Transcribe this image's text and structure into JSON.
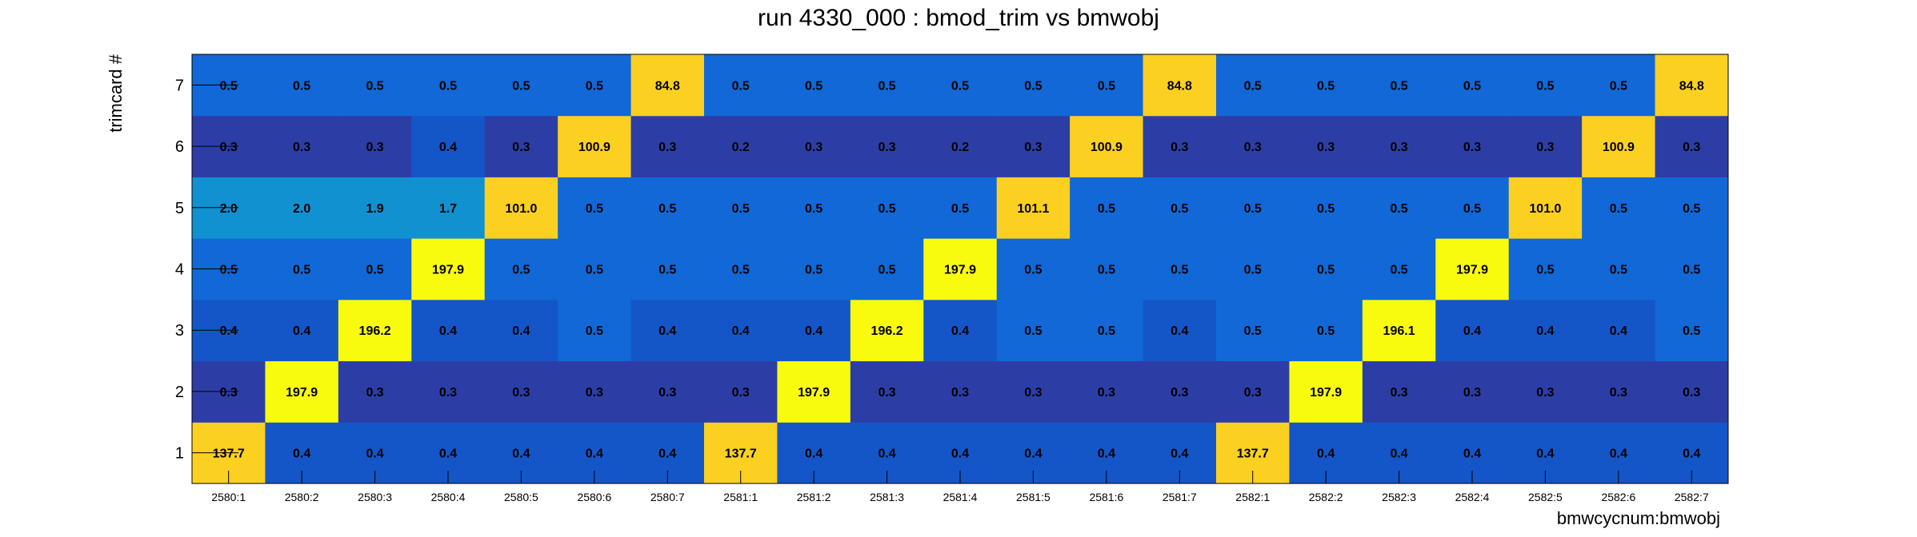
{
  "chart_data": {
    "type": "heatmap",
    "title": "run 4330_000 : bmod_trim vs bmwobj",
    "xlabel": "bmwcycnum:bmwobj",
    "ylabel": "trimcard #",
    "x_categories": [
      "2580:1",
      "2580:2",
      "2580:3",
      "2580:4",
      "2580:5",
      "2580:6",
      "2580:7",
      "2581:1",
      "2581:2",
      "2581:3",
      "2581:4",
      "2581:5",
      "2581:6",
      "2581:7",
      "2582:1",
      "2582:2",
      "2582:3",
      "2582:4",
      "2582:5",
      "2582:6",
      "2582:7"
    ],
    "y_categories": [
      "1",
      "2",
      "3",
      "4",
      "5",
      "6",
      "7"
    ],
    "values": [
      [
        137.7,
        0.4,
        0.4,
        0.4,
        0.4,
        0.4,
        0.4,
        137.7,
        0.4,
        0.4,
        0.4,
        0.4,
        0.4,
        0.4,
        137.7,
        0.4,
        0.4,
        0.4,
        0.4,
        0.4,
        0.4
      ],
      [
        0.3,
        197.9,
        0.3,
        0.3,
        0.3,
        0.3,
        0.3,
        0.3,
        197.9,
        0.3,
        0.3,
        0.3,
        0.3,
        0.3,
        0.3,
        197.9,
        0.3,
        0.3,
        0.3,
        0.3,
        0.3
      ],
      [
        0.4,
        0.4,
        196.2,
        0.4,
        0.4,
        0.5,
        0.4,
        0.4,
        0.4,
        196.2,
        0.4,
        0.5,
        0.5,
        0.4,
        0.5,
        0.5,
        196.1,
        0.4,
        0.4,
        0.4,
        0.5
      ],
      [
        0.5,
        0.5,
        0.5,
        197.9,
        0.5,
        0.5,
        0.5,
        0.5,
        0.5,
        0.5,
        197.9,
        0.5,
        0.5,
        0.5,
        0.5,
        0.5,
        0.5,
        197.9,
        0.5,
        0.5,
        0.5
      ],
      [
        2.0,
        2.0,
        1.9,
        1.7,
        101.0,
        0.5,
        0.5,
        0.5,
        0.5,
        0.5,
        0.5,
        101.1,
        0.5,
        0.5,
        0.5,
        0.5,
        0.5,
        0.5,
        101.0,
        0.5,
        0.5
      ],
      [
        0.3,
        0.3,
        0.3,
        0.4,
        0.3,
        100.9,
        0.3,
        0.2,
        0.3,
        0.3,
        0.2,
        0.3,
        100.9,
        0.3,
        0.3,
        0.3,
        0.3,
        0.3,
        0.3,
        100.9,
        0.3
      ],
      [
        0.5,
        0.5,
        0.5,
        0.5,
        0.5,
        0.5,
        84.8,
        0.5,
        0.5,
        0.5,
        0.5,
        0.5,
        0.5,
        84.8,
        0.5,
        0.5,
        0.5,
        0.5,
        0.5,
        0.5,
        84.8
      ]
    ],
    "colors": {
      "low_navy": "#2c3ea6",
      "low_blue": "#1456c8",
      "mid_blue": "#1168d6",
      "teal": "#1191d0",
      "orange": "#fcd020",
      "yellow": "#f9fb0e"
    }
  }
}
